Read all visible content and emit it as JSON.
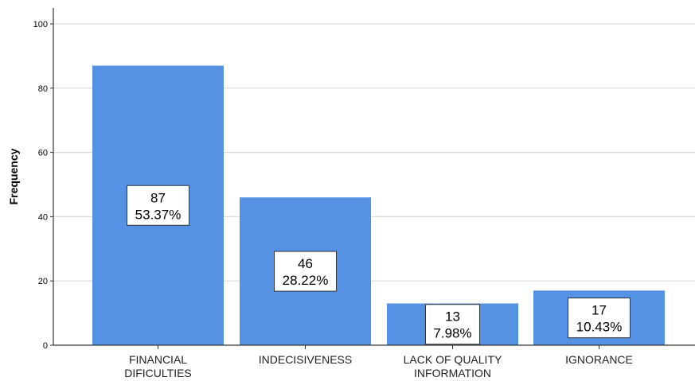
{
  "chart_data": {
    "type": "bar",
    "categories": [
      [
        "FINANCIAL",
        "DIFICULTIES"
      ],
      [
        "INDECISIVENESS"
      ],
      [
        "LACK OF QUALITY",
        "INFORMATION"
      ],
      [
        "IGNORANCE"
      ]
    ],
    "values": [
      87,
      46,
      13,
      17
    ],
    "percent_labels": [
      "53.37%",
      "28.22%",
      "7.98%",
      "10.43%"
    ],
    "ylabel": "Frequency",
    "xlabel": "",
    "ylim": [
      0,
      100
    ],
    "yticks": [
      0,
      20,
      40,
      60,
      80,
      100
    ],
    "grid": true,
    "colors": {
      "bar": "#5592e3",
      "grid": "#d9d9d9",
      "axis": "#333333",
      "label_box_border": "#333333"
    }
  }
}
